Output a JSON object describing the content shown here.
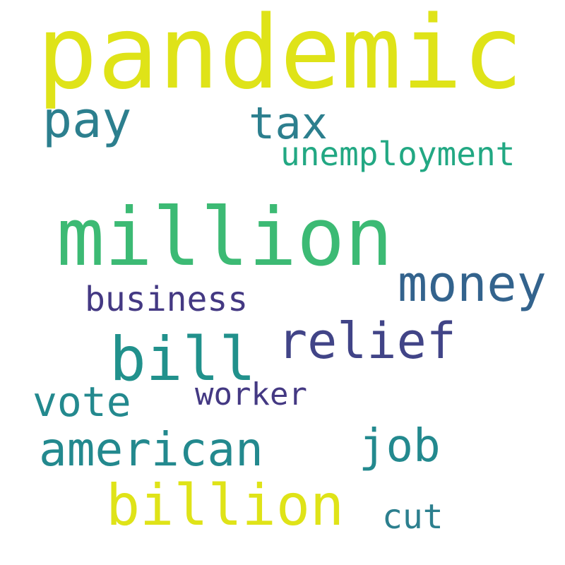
{
  "words": [
    {
      "key": "pandemic",
      "text": "pandemic",
      "color": "#dfe318"
    },
    {
      "key": "pay",
      "text": "pay",
      "color": "#2c7f8e"
    },
    {
      "key": "tax",
      "text": "tax",
      "color": "#2c7f8e"
    },
    {
      "key": "unemployment",
      "text": "unemployment",
      "color": "#22a883"
    },
    {
      "key": "million",
      "text": "million",
      "color": "#3cba74"
    },
    {
      "key": "money",
      "text": "money",
      "color": "#33638d"
    },
    {
      "key": "business",
      "text": "business",
      "color": "#443983"
    },
    {
      "key": "relief",
      "text": "relief",
      "color": "#414487"
    },
    {
      "key": "bill",
      "text": "bill",
      "color": "#21918c"
    },
    {
      "key": "vote",
      "text": "vote",
      "color": "#23898e"
    },
    {
      "key": "worker",
      "text": "worker",
      "color": "#443983"
    },
    {
      "key": "american",
      "text": "american",
      "color": "#23898e"
    },
    {
      "key": "job",
      "text": "job",
      "color": "#23898e"
    },
    {
      "key": "billion",
      "text": "billion",
      "color": "#dfe318"
    },
    {
      "key": "cut",
      "text": "cut",
      "color": "#2c7f8e"
    }
  ]
}
